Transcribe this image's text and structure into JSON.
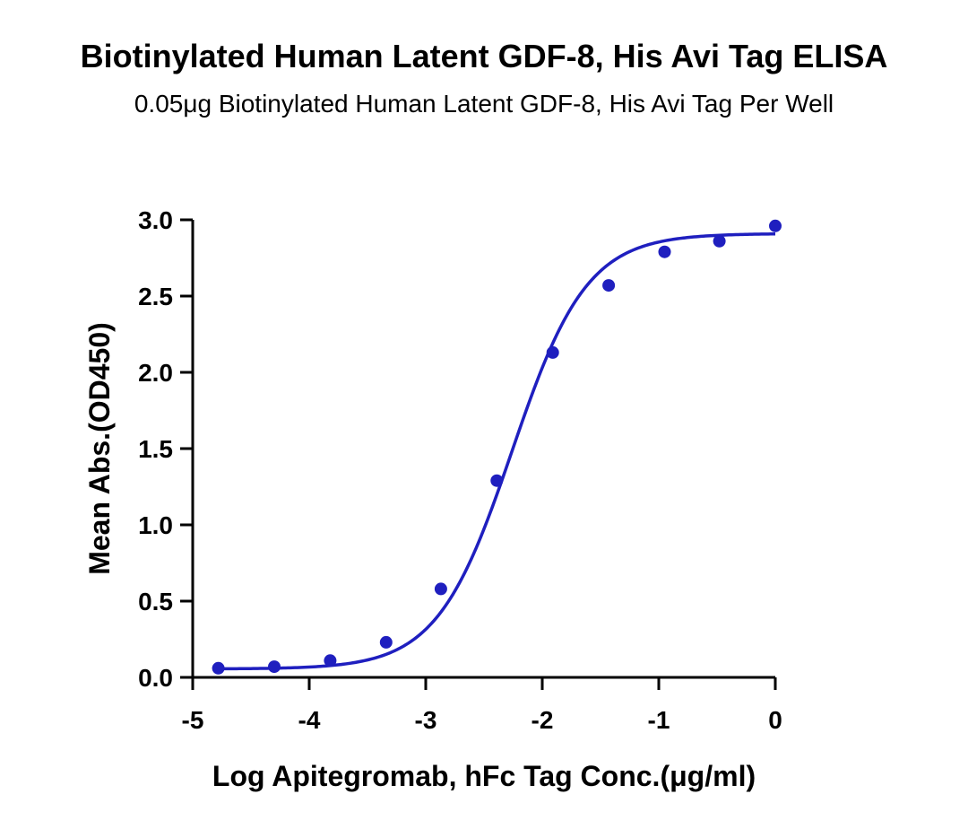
{
  "chart_data": {
    "type": "scatter",
    "title": "Biotinylated Human Latent GDF-8, His Avi Tag ELISA",
    "subtitle": "0.05μg Biotinylated Human Latent GDF-8, His Avi Tag Per Well",
    "xlabel": "Log Apitegromab, hFc Tag Conc.(μg/ml)",
    "ylabel": "Mean Abs.(OD450)",
    "xlim": [
      -5,
      0
    ],
    "ylim": [
      0,
      3
    ],
    "x_ticks": [
      -5,
      -4,
      -3,
      -2,
      -1,
      0
    ],
    "y_ticks": [
      0,
      0.5,
      1,
      1.5,
      2,
      2.5,
      3
    ],
    "x_tick_labels": [
      "-5",
      "-4",
      "-3",
      "-2",
      "-1",
      "0"
    ],
    "y_tick_labels": [
      "0.0",
      "0.5",
      "1.0",
      "1.5",
      "2.0",
      "2.5",
      "3.0"
    ],
    "grid": false,
    "color": "#1f1fbf",
    "series": [
      {
        "x": [
          -4.78,
          -4.3,
          -3.82,
          -3.34,
          -2.87,
          -2.39,
          -1.91,
          -1.43,
          -0.95,
          -0.48,
          0.0
        ],
        "y": [
          0.06,
          0.07,
          0.11,
          0.23,
          0.58,
          1.29,
          2.13,
          2.57,
          2.79,
          2.86,
          2.96
        ]
      }
    ],
    "fit_curve": {
      "model": "4PL",
      "bottom": 0.055,
      "top": 2.91,
      "log_ec50": -2.26,
      "hill": 1.35
    }
  }
}
